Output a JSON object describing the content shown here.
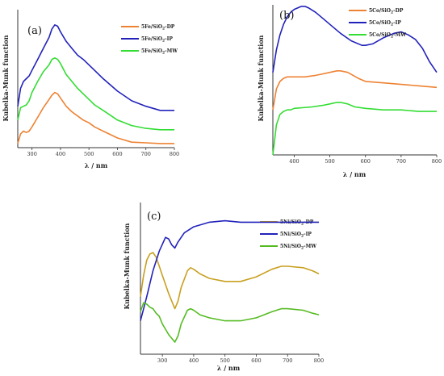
{
  "chart_data": [
    {
      "type": "line",
      "panel_label": "(a)",
      "xlabel": "λ / nm",
      "ylabel": "Kubelka-Munk function",
      "xlim": [
        250,
        800
      ],
      "xticks": [
        300,
        400,
        500,
        600,
        700,
        800
      ],
      "ylim": [
        0,
        1
      ],
      "grid": false,
      "legend": "top-right",
      "series": [
        {
          "name": "5Fe/SiO2-DP",
          "label_main": "5Fe/SiO",
          "label_sub": "2",
          "label_tail": "-DP",
          "color": "#ee8233",
          "x": [
            250,
            260,
            270,
            280,
            290,
            300,
            320,
            340,
            360,
            370,
            380,
            390,
            400,
            420,
            440,
            460,
            480,
            500,
            520,
            550,
            600,
            650,
            700,
            750,
            800
          ],
          "y": [
            0.03,
            0.1,
            0.12,
            0.11,
            0.12,
            0.15,
            0.22,
            0.29,
            0.35,
            0.38,
            0.4,
            0.39,
            0.36,
            0.3,
            0.26,
            0.23,
            0.2,
            0.18,
            0.15,
            0.12,
            0.07,
            0.04,
            0.035,
            0.03,
            0.03
          ]
        },
        {
          "name": "5Fe/SiO2-IP",
          "label_main": "5Fe/SiO",
          "label_sub": "2",
          "label_tail": "-IP",
          "color": "#2222bb",
          "x": [
            250,
            260,
            270,
            280,
            290,
            300,
            320,
            340,
            360,
            370,
            380,
            390,
            400,
            420,
            440,
            460,
            480,
            500,
            520,
            550,
            600,
            650,
            700,
            750,
            800
          ],
          "y": [
            0.3,
            0.43,
            0.48,
            0.5,
            0.52,
            0.56,
            0.64,
            0.72,
            0.8,
            0.86,
            0.89,
            0.88,
            0.84,
            0.77,
            0.72,
            0.67,
            0.64,
            0.6,
            0.56,
            0.5,
            0.41,
            0.34,
            0.3,
            0.27,
            0.27
          ]
        },
        {
          "name": "5Fe/SiO2-MW",
          "label_main": "5Fe/SiO",
          "label_sub": "2",
          "label_tail": "-MW",
          "color": "#33dd33",
          "x": [
            250,
            260,
            270,
            280,
            290,
            300,
            320,
            340,
            360,
            370,
            380,
            390,
            400,
            420,
            440,
            460,
            480,
            500,
            520,
            550,
            600,
            650,
            700,
            750,
            800
          ],
          "y": [
            0.2,
            0.29,
            0.3,
            0.31,
            0.34,
            0.4,
            0.48,
            0.55,
            0.6,
            0.64,
            0.65,
            0.64,
            0.61,
            0.53,
            0.48,
            0.43,
            0.39,
            0.35,
            0.31,
            0.27,
            0.2,
            0.16,
            0.14,
            0.13,
            0.13
          ]
        }
      ]
    },
    {
      "type": "line",
      "panel_label": "(b)",
      "xlabel": "λ / nm",
      "ylabel": "Kubelka-Munk function",
      "xlim": [
        340,
        800
      ],
      "xticks": [
        400,
        500,
        600,
        700,
        800
      ],
      "ylim": [
        0,
        1
      ],
      "grid": false,
      "legend": "top-right",
      "series": [
        {
          "name": "5Co/SiO2-DP",
          "label_main": "5Co/SiO",
          "label_sub": "2",
          "label_tail": "-DP",
          "color": "#ee8233",
          "x": [
            340,
            350,
            360,
            370,
            380,
            390,
            400,
            430,
            460,
            480,
            500,
            520,
            530,
            550,
            580,
            600,
            650,
            700,
            750,
            800
          ],
          "y": [
            0.3,
            0.44,
            0.49,
            0.51,
            0.52,
            0.52,
            0.52,
            0.52,
            0.53,
            0.54,
            0.55,
            0.56,
            0.56,
            0.55,
            0.51,
            0.49,
            0.48,
            0.47,
            0.46,
            0.45
          ]
        },
        {
          "name": "5Co/SiO2-IP",
          "label_main": "5Co/SiO",
          "label_sub": "2",
          "label_tail": "-IP",
          "color": "#2222bb",
          "x": [
            340,
            350,
            360,
            370,
            380,
            390,
            400,
            420,
            430,
            440,
            460,
            480,
            500,
            530,
            560,
            590,
            600,
            620,
            650,
            680,
            700,
            720,
            740,
            760,
            780,
            800
          ],
          "y": [
            0.55,
            0.7,
            0.8,
            0.87,
            0.92,
            0.95,
            0.97,
            0.99,
            0.99,
            0.98,
            0.95,
            0.91,
            0.87,
            0.81,
            0.76,
            0.73,
            0.73,
            0.74,
            0.78,
            0.81,
            0.82,
            0.8,
            0.77,
            0.71,
            0.62,
            0.55
          ]
        },
        {
          "name": "5Co/SiO2-MW",
          "label_main": "5Co/SiO",
          "label_sub": "2",
          "label_tail": "-MW",
          "color": "#33dd33",
          "x": [
            340,
            350,
            360,
            370,
            380,
            390,
            400,
            450,
            480,
            500,
            520,
            530,
            550,
            570,
            600,
            650,
            700,
            750,
            800
          ],
          "y": [
            0.0,
            0.2,
            0.27,
            0.29,
            0.3,
            0.3,
            0.31,
            0.32,
            0.33,
            0.34,
            0.35,
            0.35,
            0.34,
            0.32,
            0.31,
            0.3,
            0.3,
            0.29,
            0.29
          ]
        }
      ]
    },
    {
      "type": "line",
      "panel_label": "(c)",
      "xlabel": "λ / nm",
      "ylabel": "Kubelka-Munk function",
      "xlim": [
        230,
        800
      ],
      "xticks": [
        300,
        400,
        500,
        600,
        700,
        800
      ],
      "ylim": [
        0,
        1
      ],
      "grid": false,
      "legend": "top-right",
      "series": [
        {
          "name": "5Ni/SiO2-DP",
          "label_main": "5Ni/SiO",
          "label_sub": "2",
          "label_tail": "-DP",
          "color": "#c8a020",
          "x": [
            230,
            240,
            250,
            260,
            270,
            280,
            290,
            300,
            320,
            340,
            350,
            360,
            380,
            390,
            400,
            420,
            450,
            500,
            550,
            600,
            650,
            680,
            700,
            750,
            780,
            800
          ],
          "y": [
            0.38,
            0.52,
            0.62,
            0.66,
            0.67,
            0.64,
            0.58,
            0.52,
            0.4,
            0.3,
            0.35,
            0.44,
            0.55,
            0.57,
            0.56,
            0.53,
            0.5,
            0.48,
            0.48,
            0.51,
            0.56,
            0.58,
            0.58,
            0.57,
            0.55,
            0.53
          ]
        },
        {
          "name": "5Ni/SiO2-IP",
          "label_main": "5Ni/SiO",
          "label_sub": "2",
          "label_tail": "-IP",
          "color": "#2222bb",
          "x": [
            230,
            250,
            270,
            290,
            310,
            320,
            330,
            340,
            350,
            370,
            400,
            450,
            500,
            550,
            600,
            650,
            700,
            750,
            800
          ],
          "y": [
            0.22,
            0.38,
            0.55,
            0.68,
            0.77,
            0.76,
            0.72,
            0.7,
            0.74,
            0.8,
            0.84,
            0.87,
            0.88,
            0.87,
            0.87,
            0.87,
            0.87,
            0.87,
            0.87
          ]
        },
        {
          "name": "5Ni/SiO2-MW",
          "label_main": "5Ni/SiO",
          "label_sub": "2",
          "label_tail": "-MW",
          "color": "#55bb22",
          "x": [
            230,
            240,
            250,
            260,
            270,
            280,
            290,
            300,
            320,
            340,
            350,
            360,
            380,
            390,
            400,
            420,
            450,
            500,
            550,
            600,
            650,
            680,
            700,
            750,
            780,
            800
          ],
          "y": [
            0.28,
            0.34,
            0.33,
            0.31,
            0.3,
            0.27,
            0.25,
            0.2,
            0.13,
            0.08,
            0.12,
            0.2,
            0.29,
            0.3,
            0.29,
            0.26,
            0.24,
            0.22,
            0.22,
            0.24,
            0.28,
            0.3,
            0.3,
            0.29,
            0.27,
            0.26
          ]
        }
      ]
    }
  ]
}
